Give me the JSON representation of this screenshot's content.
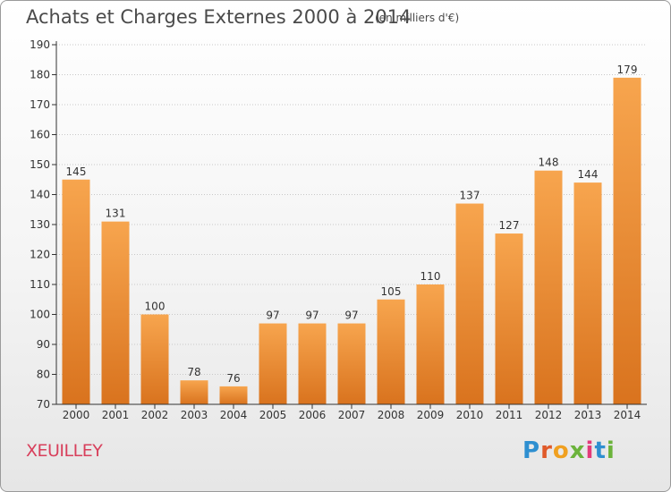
{
  "header": {
    "title": "Achats et Charges Externes 2000 à 2014",
    "subtitle": "(en milliers d'€)"
  },
  "footer": {
    "place": "XEUILLEY",
    "logo": "Proxiti"
  },
  "colors": {
    "bar_light": "#f7a54e",
    "bar_dark": "#d9731e",
    "axis": "#333333",
    "grid": "#c8c8c8",
    "place": "#d8405c",
    "logo_letters": [
      "#2e8fd0",
      "#e05a2a",
      "#f0a020",
      "#6bb33b",
      "#e23b7a",
      "#2e8fd0",
      "#6bb33b"
    ]
  },
  "chart_data": {
    "type": "bar",
    "title": "Achats et Charges Externes 2000 à 2014",
    "subtitle": "(en milliers d'€)",
    "categories": [
      "2000",
      "2001",
      "2002",
      "2003",
      "2004",
      "2005",
      "2006",
      "2007",
      "2008",
      "2009",
      "2010",
      "2011",
      "2012",
      "2013",
      "2014"
    ],
    "values": [
      145,
      131,
      100,
      78,
      76,
      97,
      97,
      97,
      105,
      110,
      137,
      127,
      148,
      144,
      179
    ],
    "ylim": [
      70,
      190
    ],
    "yticks": [
      70,
      80,
      90,
      100,
      110,
      120,
      130,
      140,
      150,
      160,
      170,
      180,
      190
    ],
    "grid": true,
    "data_labels": true
  }
}
